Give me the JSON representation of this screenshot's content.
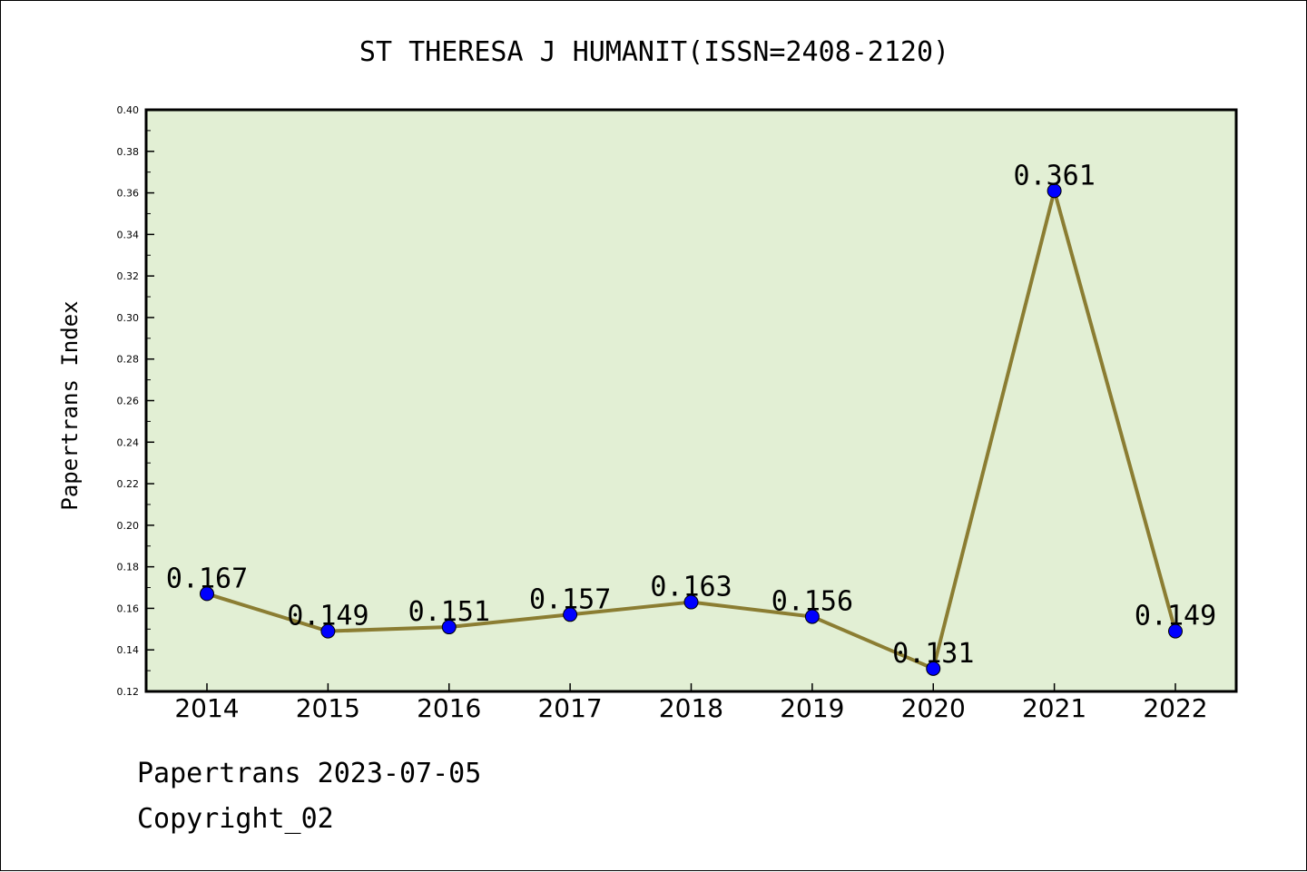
{
  "chart_data": {
    "type": "line",
    "title": "ST THERESA J HUMANIT(ISSN=2408-2120)",
    "xlabel": "",
    "ylabel": "Papertrans Index",
    "categories": [
      "2014",
      "2015",
      "2016",
      "2017",
      "2018",
      "2019",
      "2020",
      "2021",
      "2022"
    ],
    "series": [
      {
        "values": [
          0.167,
          0.149,
          0.151,
          0.157,
          0.163,
          0.156,
          0.131,
          0.361,
          0.149
        ],
        "data_labels": [
          "0.167",
          "0.149",
          "0.151",
          "0.157",
          "0.163",
          "0.156",
          "0.131",
          "0.361",
          "0.149"
        ]
      }
    ],
    "ylim": [
      0.12,
      0.4
    ],
    "yticks": [
      "0.12",
      "0.14",
      "0.16",
      "0.18",
      "0.20",
      "0.22",
      "0.24",
      "0.26",
      "0.28",
      "0.30",
      "0.32",
      "0.34",
      "0.36",
      "0.38",
      "0.40"
    ],
    "grid": false,
    "legend": "none",
    "colors": {
      "plot_background": "#e2efd4",
      "line": "#8b7d32",
      "marker": "#0000ff",
      "axes": "#000000"
    }
  },
  "footer": {
    "date_text": "Papertrans 2023-07-05",
    "copyright_text": "Copyright_02"
  }
}
